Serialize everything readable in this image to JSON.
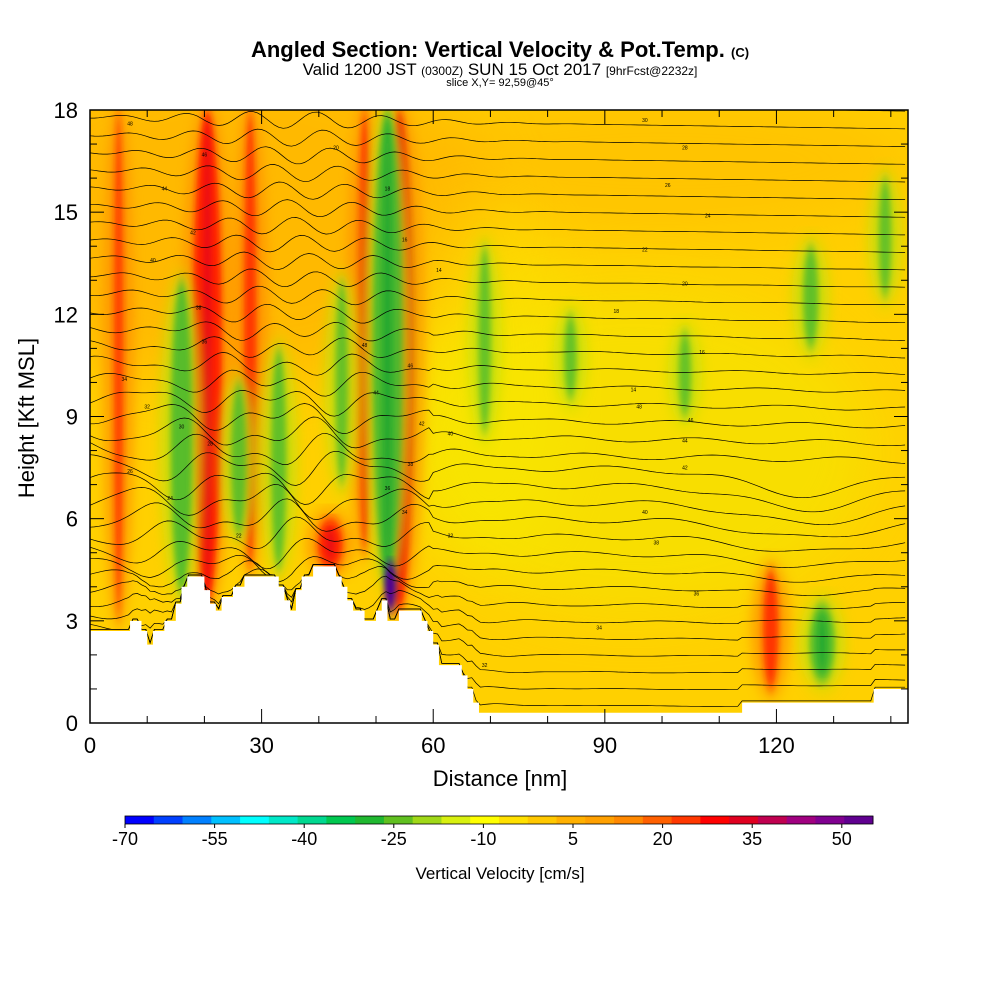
{
  "title": {
    "main": "Angled Section: Vertical Velocity & Pot.Temp.",
    "main_unit": "(C)",
    "valid_prefix": "Valid 1200 JST",
    "valid_utc": "(0300Z)",
    "valid_date": "SUN 15 Oct 2017",
    "forecast": "[9hrFcst@2232z]",
    "slice": "slice X,Y= 92,59@45°"
  },
  "chart_data": {
    "type": "heatmap",
    "xlabel": "Distance [nm]",
    "ylabel": "Height [Kft MSL]",
    "xlim": [
      0,
      143
    ],
    "ylim": [
      0,
      18
    ],
    "x_ticks": [
      0,
      30,
      60,
      90,
      120
    ],
    "y_ticks": [
      0,
      3,
      6,
      9,
      12,
      15,
      18
    ],
    "colorbar": {
      "label": "Vertical Velocity [cm/s]",
      "tick_labels": [
        -70,
        -55,
        -40,
        -25,
        -10,
        5,
        20,
        35,
        50
      ],
      "colors": [
        "#0000ff",
        "#0040ff",
        "#0080ff",
        "#00c0ff",
        "#00ffff",
        "#00e8c8",
        "#00d890",
        "#00c850",
        "#20b830",
        "#60c020",
        "#a0d818",
        "#d8f010",
        "#ffff00",
        "#ffe000",
        "#ffc800",
        "#ffb000",
        "#ffa000",
        "#ff8800",
        "#ff6000",
        "#ff3800",
        "#ff0000",
        "#e00020",
        "#c00050",
        "#a00080",
        "#800090",
        "#600090"
      ]
    },
    "background_level_color": "#ffd000",
    "updraft_columns": [
      {
        "x": 5,
        "bottom": 3.0,
        "top": 18,
        "strength": 0.35
      },
      {
        "x": 20.5,
        "bottom": 3.5,
        "top": 18,
        "strength": 1.0
      },
      {
        "x": 28,
        "bottom": 4.5,
        "top": 18,
        "strength": 0.5
      },
      {
        "x": 42,
        "bottom": 4.5,
        "top": 6.0,
        "strength": 0.9
      },
      {
        "x": 54,
        "bottom": 3.3,
        "top": 18,
        "strength": 1.0
      },
      {
        "x": 48,
        "bottom": 5.0,
        "top": 18,
        "strength": 0.5
      },
      {
        "x": 119,
        "bottom": 1.0,
        "top": 4.5,
        "strength": 0.6
      }
    ],
    "downdraft_columns": [
      {
        "x": 16,
        "bottom": 3.8,
        "top": 13,
        "strength": 0.8
      },
      {
        "x": 26,
        "bottom": 5.5,
        "top": 10,
        "strength": 0.6
      },
      {
        "x": 33,
        "bottom": 4.5,
        "top": 11,
        "strength": 0.6
      },
      {
        "x": 44,
        "bottom": 7.0,
        "top": 13,
        "strength": 0.5
      },
      {
        "x": 52,
        "bottom": 4.0,
        "top": 18,
        "strength": 1.0
      },
      {
        "x": 69,
        "bottom": 8.5,
        "top": 14,
        "strength": 0.5
      },
      {
        "x": 84,
        "bottom": 9.5,
        "top": 12,
        "strength": 0.5
      },
      {
        "x": 104,
        "bottom": 9.0,
        "top": 11.5,
        "strength": 0.5
      },
      {
        "x": 126,
        "bottom": 11.0,
        "top": 14,
        "strength": 0.6
      },
      {
        "x": 139,
        "bottom": 12.5,
        "top": 16,
        "strength": 0.5
      },
      {
        "x": 128,
        "bottom": 1.2,
        "top": 3.5,
        "strength": 0.9
      }
    ],
    "core_maximum": {
      "x": 52.5,
      "y": 4.0,
      "strength": 1.0
    },
    "terrain_profile": [
      [
        0,
        2.7
      ],
      [
        5,
        2.7
      ],
      [
        7,
        3.0
      ],
      [
        9,
        2.7
      ],
      [
        10,
        2.3
      ],
      [
        11,
        2.7
      ],
      [
        13,
        3.0
      ],
      [
        15,
        3.5
      ],
      [
        16,
        4.0
      ],
      [
        17,
        4.3
      ],
      [
        19,
        4.3
      ],
      [
        20,
        3.9
      ],
      [
        21,
        3.5
      ],
      [
        22,
        3.3
      ],
      [
        23,
        3.7
      ],
      [
        25,
        4.0
      ],
      [
        27,
        4.3
      ],
      [
        29,
        4.3
      ],
      [
        31,
        4.3
      ],
      [
        33,
        4.0
      ],
      [
        34,
        3.6
      ],
      [
        35,
        3.3
      ],
      [
        36,
        3.9
      ],
      [
        37,
        4.3
      ],
      [
        39,
        4.6
      ],
      [
        42,
        4.6
      ],
      [
        43,
        4.3
      ],
      [
        44,
        4.0
      ],
      [
        45,
        3.6
      ],
      [
        46,
        3.3
      ],
      [
        48,
        3.0
      ],
      [
        49,
        3.0
      ],
      [
        50,
        3.3
      ],
      [
        51,
        3.6
      ],
      [
        52,
        3.0
      ],
      [
        53,
        3.0
      ],
      [
        54,
        3.3
      ],
      [
        57,
        3.3
      ],
      [
        58,
        3.0
      ],
      [
        59,
        2.7
      ],
      [
        60,
        2.3
      ],
      [
        61,
        1.7
      ],
      [
        64,
        1.7
      ],
      [
        65,
        1.4
      ],
      [
        66,
        1.0
      ],
      [
        67,
        0.6
      ],
      [
        68,
        0.3
      ],
      [
        113,
        0.3
      ],
      [
        114,
        0.6
      ],
      [
        122,
        0.6
      ],
      [
        127,
        0.6
      ],
      [
        133,
        0.6
      ],
      [
        137,
        1.0
      ],
      [
        143,
        1.3
      ]
    ],
    "isentrope_labels": [
      "48",
      "46",
      "44",
      "42",
      "40",
      "38",
      "36",
      "34",
      "32",
      "30",
      "28",
      "26",
      "24",
      "22",
      "20",
      "18",
      "16",
      "14"
    ]
  }
}
